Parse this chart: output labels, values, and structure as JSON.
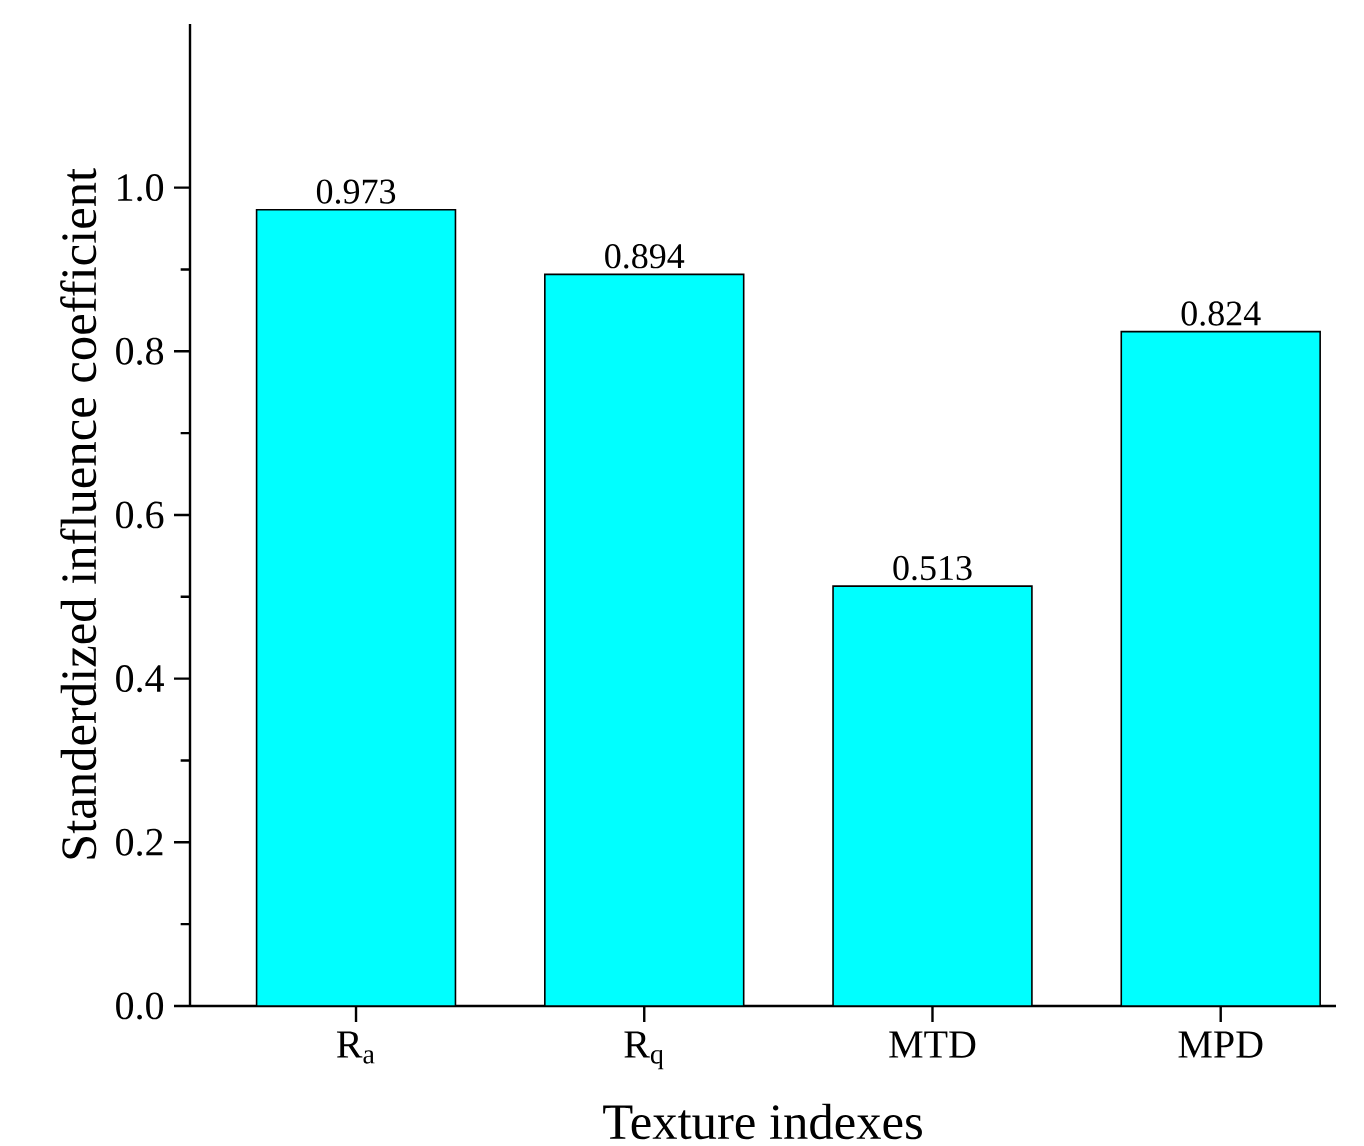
{
  "chart_data": {
    "type": "bar",
    "xlabel": "Texture indexes",
    "ylabel": "Standerdized influence coefficient",
    "categories": [
      "R$_{a}$",
      "R$_{q}$",
      "MTD",
      "MPD"
    ],
    "values": [
      0.973,
      0.894,
      0.513,
      0.824
    ],
    "color": "#00ffff",
    "ylim": [
      0,
      1.2
    ],
    "yticks": [
      {
        "value": 0,
        "label": "0.0"
      },
      {
        "value": 0.2,
        "label": "0.2"
      },
      {
        "value": 0.4,
        "label": "0.4"
      },
      {
        "value": 0.6,
        "label": "0.6"
      },
      {
        "value": 0.8,
        "label": "0.8"
      },
      {
        "value": 1.0,
        "label": "1.0"
      }
    ],
    "data_labels": true,
    "grid": false
  }
}
